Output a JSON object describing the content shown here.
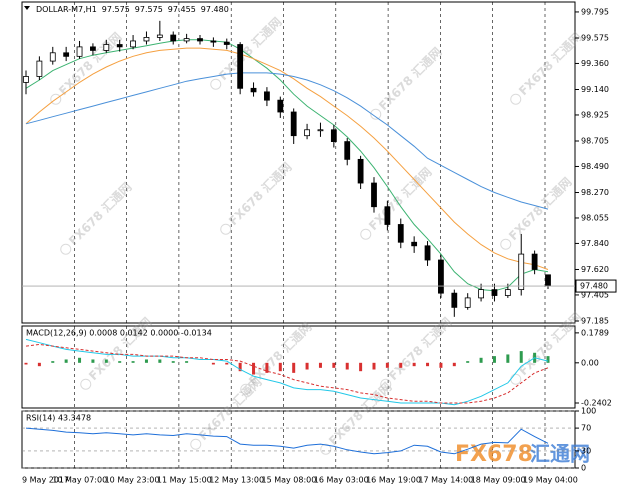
{
  "chart_data": [
    {
      "type": "candlestick",
      "title": "DOLLAR-M7,H1",
      "header_values": [
        "97.575",
        "97.575",
        "97.455",
        "97.480"
      ],
      "open": [
        99.2,
        99.25,
        99.38,
        99.45,
        99.42,
        99.5,
        99.47,
        99.52,
        99.5,
        99.55,
        99.58,
        99.6,
        99.55,
        99.57,
        99.55,
        99.54,
        99.52,
        99.15,
        99.12,
        99.05,
        98.95,
        98.75,
        98.8,
        98.8,
        98.7,
        98.55,
        98.35,
        98.15,
        98.0,
        97.85,
        97.82,
        97.7,
        97.42,
        97.3,
        97.38,
        97.45,
        97.4,
        97.45,
        97.75,
        97.575
      ],
      "high": [
        99.3,
        99.42,
        99.5,
        99.5,
        99.55,
        99.53,
        99.56,
        99.56,
        99.6,
        99.63,
        99.72,
        99.63,
        99.61,
        99.6,
        99.58,
        99.57,
        99.54,
        99.2,
        99.16,
        99.08,
        98.98,
        98.85,
        98.86,
        98.84,
        98.73,
        98.58,
        98.4,
        98.2,
        98.05,
        97.9,
        97.86,
        97.74,
        97.45,
        97.42,
        97.5,
        97.5,
        97.5,
        97.92,
        97.78,
        97.575
      ],
      "low": [
        99.1,
        99.22,
        99.35,
        99.38,
        99.4,
        99.43,
        99.45,
        99.46,
        99.48,
        99.52,
        99.55,
        99.52,
        99.53,
        99.52,
        99.5,
        99.48,
        99.1,
        99.08,
        99.0,
        98.9,
        98.68,
        98.72,
        98.74,
        98.65,
        98.5,
        98.3,
        98.1,
        97.95,
        97.8,
        97.76,
        97.65,
        97.38,
        97.22,
        97.28,
        97.35,
        97.35,
        97.38,
        97.4,
        97.58,
        97.455
      ],
      "close": [
        99.25,
        99.38,
        99.45,
        99.42,
        99.5,
        99.47,
        99.52,
        99.5,
        99.55,
        99.58,
        99.6,
        99.55,
        99.57,
        99.55,
        99.54,
        99.52,
        99.15,
        99.12,
        99.05,
        98.95,
        98.75,
        98.8,
        98.8,
        98.7,
        98.55,
        98.35,
        98.15,
        98.0,
        97.85,
        97.82,
        97.7,
        97.42,
        97.3,
        97.38,
        97.45,
        97.4,
        97.45,
        97.75,
        97.62,
        97.48
      ],
      "series": [
        {
          "color": "#3cb371",
          "values": [
            99.15,
            99.22,
            99.3,
            99.35,
            99.4,
            99.43,
            99.45,
            99.47,
            99.49,
            99.51,
            99.53,
            99.55,
            99.56,
            99.56,
            99.55,
            99.54,
            99.48,
            99.4,
            99.32,
            99.22,
            99.1,
            99.0,
            98.92,
            98.84,
            98.74,
            98.62,
            98.48,
            98.32,
            98.15,
            98.0,
            97.88,
            97.75,
            97.6,
            97.5,
            97.45,
            97.44,
            97.47,
            97.58,
            97.62,
            97.6
          ]
        },
        {
          "color": "#f5a040",
          "values": [
            98.85,
            98.95,
            99.04,
            99.12,
            99.2,
            99.27,
            99.33,
            99.38,
            99.42,
            99.45,
            99.47,
            99.48,
            99.49,
            99.49,
            99.48,
            99.47,
            99.44,
            99.4,
            99.35,
            99.3,
            99.23,
            99.15,
            99.08,
            99.0,
            98.92,
            98.83,
            98.73,
            98.62,
            98.5,
            98.38,
            98.26,
            98.14,
            98.02,
            97.92,
            97.83,
            97.76,
            97.71,
            97.68,
            97.66,
            97.62
          ]
        },
        {
          "color": "#4a90d9",
          "values": [
            98.85,
            98.88,
            98.91,
            98.94,
            98.97,
            99.0,
            99.03,
            99.06,
            99.09,
            99.12,
            99.15,
            99.18,
            99.21,
            99.23,
            99.25,
            99.27,
            99.28,
            99.28,
            99.28,
            99.27,
            99.25,
            99.22,
            99.18,
            99.13,
            99.07,
            99.0,
            98.92,
            98.84,
            98.75,
            98.66,
            98.56,
            98.5,
            98.44,
            98.38,
            98.32,
            98.27,
            98.23,
            98.19,
            98.16,
            98.13
          ]
        }
      ],
      "last_price": {
        "value": 97.48,
        "label": "97.480"
      },
      "ylim": [
        97.168,
        99.879
      ],
      "yticks": [
        99.795,
        99.575,
        {
          "value": 99.36,
          "label": "99.360"
        },
        {
          "value": 99.14,
          "label": "99.140"
        },
        98.925,
        98.705,
        {
          "value": 98.49,
          "label": "98.490"
        },
        {
          "value": 98.27,
          "label": "98.270"
        },
        98.055,
        {
          "value": 97.84,
          "label": "97.840"
        },
        {
          "value": 97.62,
          "label": "97.620"
        },
        97.405,
        97.185
      ],
      "time_labels": [
        "9 May 2017",
        "10 May 07:00",
        "10 May 23:00",
        "11 May 15:00",
        "12 May 13:00",
        "15 May 08:00",
        "16 May 03:00",
        "16 May 19:00",
        "17 May 14:00",
        "18 May 09:00",
        "19 May 04:00"
      ],
      "watermark": "FX678 汇通网",
      "brand": [
        "FX678",
        "汇通网"
      ]
    },
    {
      "type": "macd",
      "title": "MACD(12,26,9) 0.0008 0.0142 0.0000 -0.0134",
      "histogram": {
        "color_up": "#2e9b4f",
        "color_down": "#d83030",
        "values": [
          -0.01,
          -0.02,
          0.01,
          0.02,
          0.03,
          0.02,
          0.02,
          0.01,
          0.01,
          0.02,
          0.02,
          0.01,
          0.01,
          0.0,
          -0.01,
          -0.01,
          -0.05,
          -0.07,
          -0.06,
          -0.05,
          -0.06,
          -0.04,
          -0.03,
          -0.03,
          -0.04,
          -0.05,
          -0.04,
          -0.03,
          -0.03,
          -0.02,
          -0.02,
          -0.03,
          -0.02,
          0.01,
          0.03,
          0.04,
          0.05,
          0.07,
          0.06,
          0.04
        ]
      },
      "series": [
        {
          "color": "#22c8e8",
          "values": [
            0.14,
            0.12,
            0.1,
            0.08,
            0.07,
            0.06,
            0.05,
            0.05,
            0.04,
            0.04,
            0.04,
            0.03,
            0.03,
            0.02,
            0.02,
            0.01,
            -0.04,
            -0.08,
            -0.1,
            -0.12,
            -0.15,
            -0.16,
            -0.16,
            -0.17,
            -0.19,
            -0.21,
            -0.22,
            -0.23,
            -0.24,
            -0.24,
            -0.24,
            -0.24,
            -0.25,
            -0.23,
            -0.2,
            -0.16,
            -0.12,
            -0.02,
            0.03,
            0.01
          ]
        },
        {
          "color": "#d83030",
          "dashed": true,
          "values": [
            0.1,
            0.11,
            0.1,
            0.09,
            0.08,
            0.07,
            0.06,
            0.05,
            0.05,
            0.04,
            0.04,
            0.04,
            0.03,
            0.03,
            0.02,
            0.02,
            0.01,
            -0.02,
            -0.05,
            -0.07,
            -0.1,
            -0.12,
            -0.14,
            -0.15,
            -0.16,
            -0.18,
            -0.19,
            -0.21,
            -0.22,
            -0.23,
            -0.23,
            -0.24,
            -0.24,
            -0.24,
            -0.23,
            -0.21,
            -0.18,
            -0.12,
            -0.06,
            -0.03
          ]
        }
      ],
      "ylim": [
        -0.27,
        0.22
      ],
      "yticks": [
        0.1789,
        {
          "value": 0,
          "label": "0.00"
        },
        -0.2402
      ]
    },
    {
      "type": "line",
      "title": "RSI(14) 43.3478",
      "series": [
        {
          "color": "#1e6fd9",
          "values": [
            70,
            68,
            66,
            63,
            62,
            60,
            62,
            60,
            58,
            60,
            58,
            57,
            60,
            58,
            56,
            55,
            42,
            40,
            40,
            38,
            35,
            40,
            42,
            38,
            32,
            28,
            25,
            27,
            30,
            40,
            38,
            28,
            25,
            33,
            42,
            45,
            44,
            68,
            55,
            43.3478
          ]
        }
      ],
      "ylim": [
        0,
        100
      ],
      "yticks": [
        100,
        70,
        30,
        0
      ],
      "grid": true
    }
  ]
}
